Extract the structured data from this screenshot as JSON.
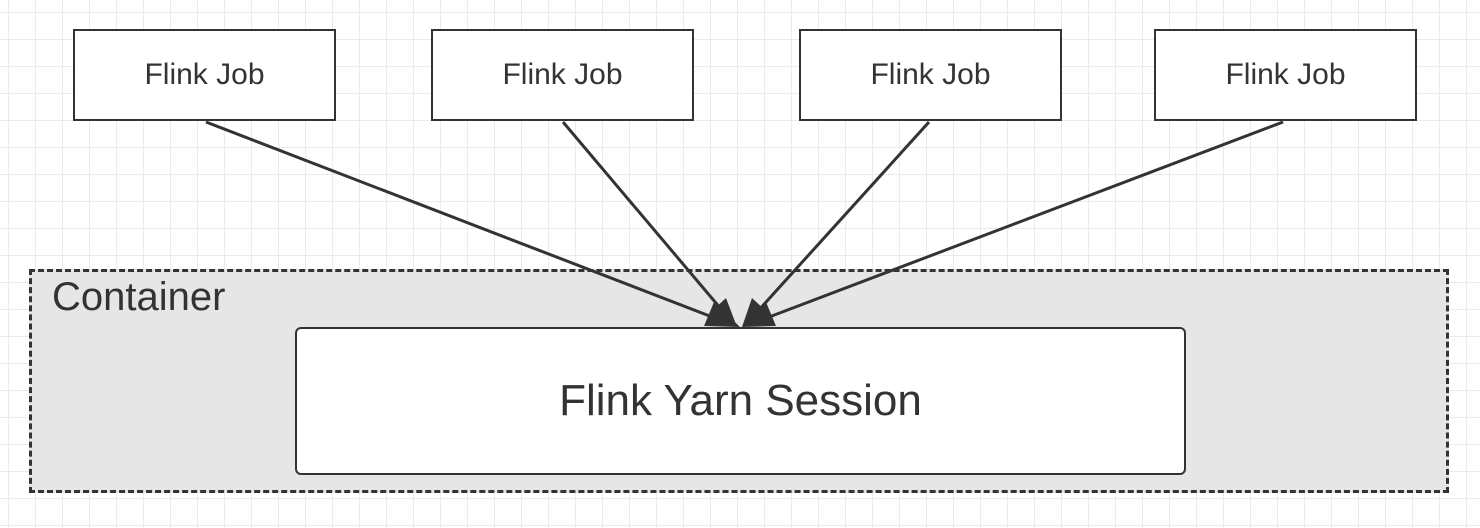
{
  "diagram": {
    "container": {
      "label": "Container"
    },
    "jobs": [
      {
        "label": "Flink Job"
      },
      {
        "label": "Flink Job"
      },
      {
        "label": "Flink Job"
      },
      {
        "label": "Flink Job"
      }
    ],
    "session": {
      "label": "Flink Yarn Session"
    },
    "edges": [
      {
        "from": "jobs.0",
        "to": "session"
      },
      {
        "from": "jobs.1",
        "to": "session"
      },
      {
        "from": "jobs.2",
        "to": "session"
      },
      {
        "from": "jobs.3",
        "to": "session"
      }
    ],
    "colors": {
      "stroke": "#333333",
      "container_fill": "#e6e6e6",
      "box_fill": "#ffffff",
      "grid": "#ebebeb"
    }
  }
}
